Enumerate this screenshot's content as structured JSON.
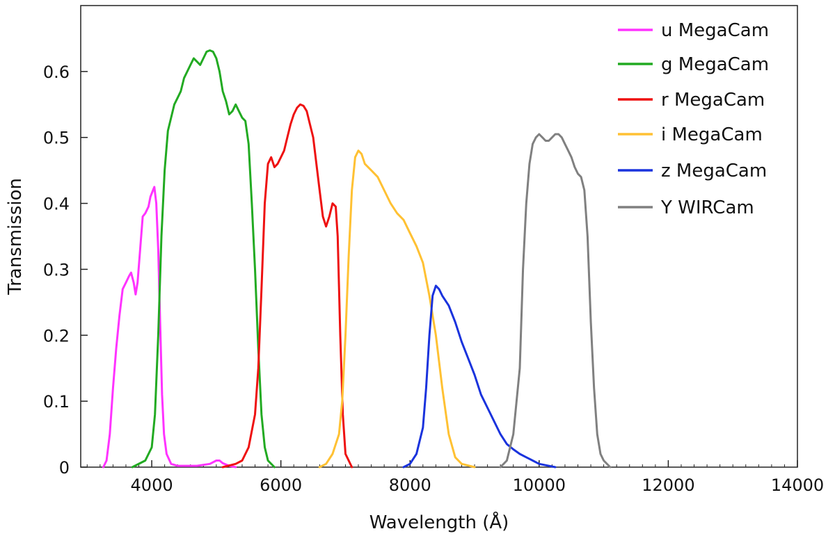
{
  "chart_data": {
    "type": "line",
    "title": "",
    "xlabel": "Wavelength (Å)",
    "ylabel": "Transmission",
    "xlim": [
      2900,
      14000
    ],
    "ylim": [
      0,
      0.7
    ],
    "xticks": [
      4000,
      6000,
      8000,
      10000,
      12000,
      14000
    ],
    "yticks": [
      0,
      0.1,
      0.2,
      0.3,
      0.4,
      0.5,
      0.6
    ],
    "grid": false,
    "legend_position": "top-right",
    "series": [
      {
        "name": "u MegaCam",
        "color": "#ff33ff",
        "points": [
          [
            3250,
            0
          ],
          [
            3300,
            0.01
          ],
          [
            3350,
            0.05
          ],
          [
            3400,
            0.12
          ],
          [
            3450,
            0.18
          ],
          [
            3500,
            0.23
          ],
          [
            3550,
            0.27
          ],
          [
            3600,
            0.28
          ],
          [
            3650,
            0.29
          ],
          [
            3680,
            0.295
          ],
          [
            3720,
            0.28
          ],
          [
            3750,
            0.262
          ],
          [
            3780,
            0.28
          ],
          [
            3820,
            0.33
          ],
          [
            3860,
            0.38
          ],
          [
            3900,
            0.385
          ],
          [
            3950,
            0.395
          ],
          [
            3980,
            0.41
          ],
          [
            4020,
            0.42
          ],
          [
            4040,
            0.425
          ],
          [
            4070,
            0.4
          ],
          [
            4100,
            0.33
          ],
          [
            4130,
            0.22
          ],
          [
            4160,
            0.11
          ],
          [
            4190,
            0.05
          ],
          [
            4230,
            0.02
          ],
          [
            4300,
            0.005
          ],
          [
            4400,
            0.002
          ],
          [
            4700,
            0.002
          ],
          [
            4900,
            0.005
          ],
          [
            5000,
            0.01
          ],
          [
            5050,
            0.01
          ],
          [
            5100,
            0.006
          ],
          [
            5200,
            0.002
          ],
          [
            5300,
            0
          ]
        ]
      },
      {
        "name": "g MegaCam",
        "color": "#22aa22",
        "points": [
          [
            3700,
            0
          ],
          [
            3900,
            0.01
          ],
          [
            4000,
            0.03
          ],
          [
            4050,
            0.08
          ],
          [
            4100,
            0.2
          ],
          [
            4150,
            0.35
          ],
          [
            4200,
            0.45
          ],
          [
            4250,
            0.51
          ],
          [
            4300,
            0.53
          ],
          [
            4350,
            0.55
          ],
          [
            4400,
            0.56
          ],
          [
            4450,
            0.57
          ],
          [
            4500,
            0.59
          ],
          [
            4550,
            0.6
          ],
          [
            4600,
            0.61
          ],
          [
            4650,
            0.62
          ],
          [
            4700,
            0.615
          ],
          [
            4750,
            0.61
          ],
          [
            4800,
            0.62
          ],
          [
            4850,
            0.63
          ],
          [
            4900,
            0.632
          ],
          [
            4950,
            0.63
          ],
          [
            5000,
            0.62
          ],
          [
            5050,
            0.6
          ],
          [
            5100,
            0.57
          ],
          [
            5150,
            0.555
          ],
          [
            5200,
            0.535
          ],
          [
            5250,
            0.54
          ],
          [
            5300,
            0.55
          ],
          [
            5350,
            0.54
          ],
          [
            5400,
            0.53
          ],
          [
            5450,
            0.525
          ],
          [
            5500,
            0.49
          ],
          [
            5550,
            0.4
          ],
          [
            5600,
            0.3
          ],
          [
            5650,
            0.18
          ],
          [
            5700,
            0.08
          ],
          [
            5750,
            0.03
          ],
          [
            5800,
            0.01
          ],
          [
            5900,
            0
          ]
        ]
      },
      {
        "name": "r MegaCam",
        "color": "#ee1111",
        "points": [
          [
            5100,
            0
          ],
          [
            5300,
            0.005
          ],
          [
            5400,
            0.01
          ],
          [
            5500,
            0.03
          ],
          [
            5600,
            0.08
          ],
          [
            5650,
            0.15
          ],
          [
            5700,
            0.27
          ],
          [
            5750,
            0.4
          ],
          [
            5800,
            0.46
          ],
          [
            5850,
            0.47
          ],
          [
            5900,
            0.455
          ],
          [
            5950,
            0.46
          ],
          [
            6000,
            0.47
          ],
          [
            6050,
            0.48
          ],
          [
            6100,
            0.5
          ],
          [
            6150,
            0.52
          ],
          [
            6200,
            0.535
          ],
          [
            6250,
            0.545
          ],
          [
            6300,
            0.55
          ],
          [
            6350,
            0.548
          ],
          [
            6400,
            0.54
          ],
          [
            6450,
            0.52
          ],
          [
            6500,
            0.5
          ],
          [
            6550,
            0.46
          ],
          [
            6600,
            0.42
          ],
          [
            6650,
            0.38
          ],
          [
            6700,
            0.365
          ],
          [
            6750,
            0.38
          ],
          [
            6800,
            0.4
          ],
          [
            6850,
            0.395
          ],
          [
            6880,
            0.35
          ],
          [
            6920,
            0.2
          ],
          [
            6960,
            0.08
          ],
          [
            7000,
            0.02
          ],
          [
            7100,
            0
          ]
        ]
      },
      {
        "name": "i MegaCam",
        "color": "#ffc133",
        "points": [
          [
            6600,
            0
          ],
          [
            6700,
            0.005
          ],
          [
            6800,
            0.02
          ],
          [
            6900,
            0.05
          ],
          [
            6950,
            0.1
          ],
          [
            7000,
            0.2
          ],
          [
            7050,
            0.32
          ],
          [
            7100,
            0.42
          ],
          [
            7150,
            0.47
          ],
          [
            7200,
            0.48
          ],
          [
            7250,
            0.475
          ],
          [
            7300,
            0.46
          ],
          [
            7400,
            0.45
          ],
          [
            7500,
            0.44
          ],
          [
            7600,
            0.42
          ],
          [
            7700,
            0.4
          ],
          [
            7800,
            0.385
          ],
          [
            7900,
            0.375
          ],
          [
            8000,
            0.355
          ],
          [
            8100,
            0.335
          ],
          [
            8200,
            0.31
          ],
          [
            8300,
            0.26
          ],
          [
            8400,
            0.2
          ],
          [
            8500,
            0.12
          ],
          [
            8600,
            0.05
          ],
          [
            8700,
            0.015
          ],
          [
            8800,
            0.005
          ],
          [
            9000,
            0
          ]
        ]
      },
      {
        "name": "z MegaCam",
        "color": "#1a33dd",
        "points": [
          [
            7900,
            0
          ],
          [
            8000,
            0.005
          ],
          [
            8100,
            0.02
          ],
          [
            8200,
            0.06
          ],
          [
            8250,
            0.12
          ],
          [
            8300,
            0.2
          ],
          [
            8350,
            0.26
          ],
          [
            8400,
            0.275
          ],
          [
            8450,
            0.27
          ],
          [
            8500,
            0.26
          ],
          [
            8600,
            0.245
          ],
          [
            8700,
            0.22
          ],
          [
            8800,
            0.19
          ],
          [
            8900,
            0.165
          ],
          [
            9000,
            0.14
          ],
          [
            9100,
            0.11
          ],
          [
            9200,
            0.09
          ],
          [
            9300,
            0.07
          ],
          [
            9400,
            0.05
          ],
          [
            9500,
            0.035
          ],
          [
            9600,
            0.027
          ],
          [
            9700,
            0.02
          ],
          [
            9800,
            0.015
          ],
          [
            9900,
            0.01
          ],
          [
            10000,
            0.005
          ],
          [
            10100,
            0.003
          ],
          [
            10250,
            0
          ]
        ]
      },
      {
        "name": "Y WIRCam",
        "color": "#808080",
        "points": [
          [
            9400,
            0
          ],
          [
            9500,
            0.01
          ],
          [
            9600,
            0.05
          ],
          [
            9700,
            0.15
          ],
          [
            9750,
            0.3
          ],
          [
            9800,
            0.4
          ],
          [
            9850,
            0.46
          ],
          [
            9900,
            0.49
          ],
          [
            9950,
            0.5
          ],
          [
            10000,
            0.505
          ],
          [
            10050,
            0.5
          ],
          [
            10100,
            0.495
          ],
          [
            10150,
            0.495
          ],
          [
            10200,
            0.5
          ],
          [
            10250,
            0.505
          ],
          [
            10300,
            0.505
          ],
          [
            10350,
            0.5
          ],
          [
            10400,
            0.49
          ],
          [
            10450,
            0.48
          ],
          [
            10500,
            0.47
          ],
          [
            10550,
            0.455
          ],
          [
            10600,
            0.445
          ],
          [
            10650,
            0.44
          ],
          [
            10700,
            0.42
          ],
          [
            10750,
            0.35
          ],
          [
            10800,
            0.22
          ],
          [
            10850,
            0.12
          ],
          [
            10900,
            0.05
          ],
          [
            10950,
            0.02
          ],
          [
            11000,
            0.01
          ],
          [
            11100,
            0
          ]
        ]
      }
    ]
  }
}
